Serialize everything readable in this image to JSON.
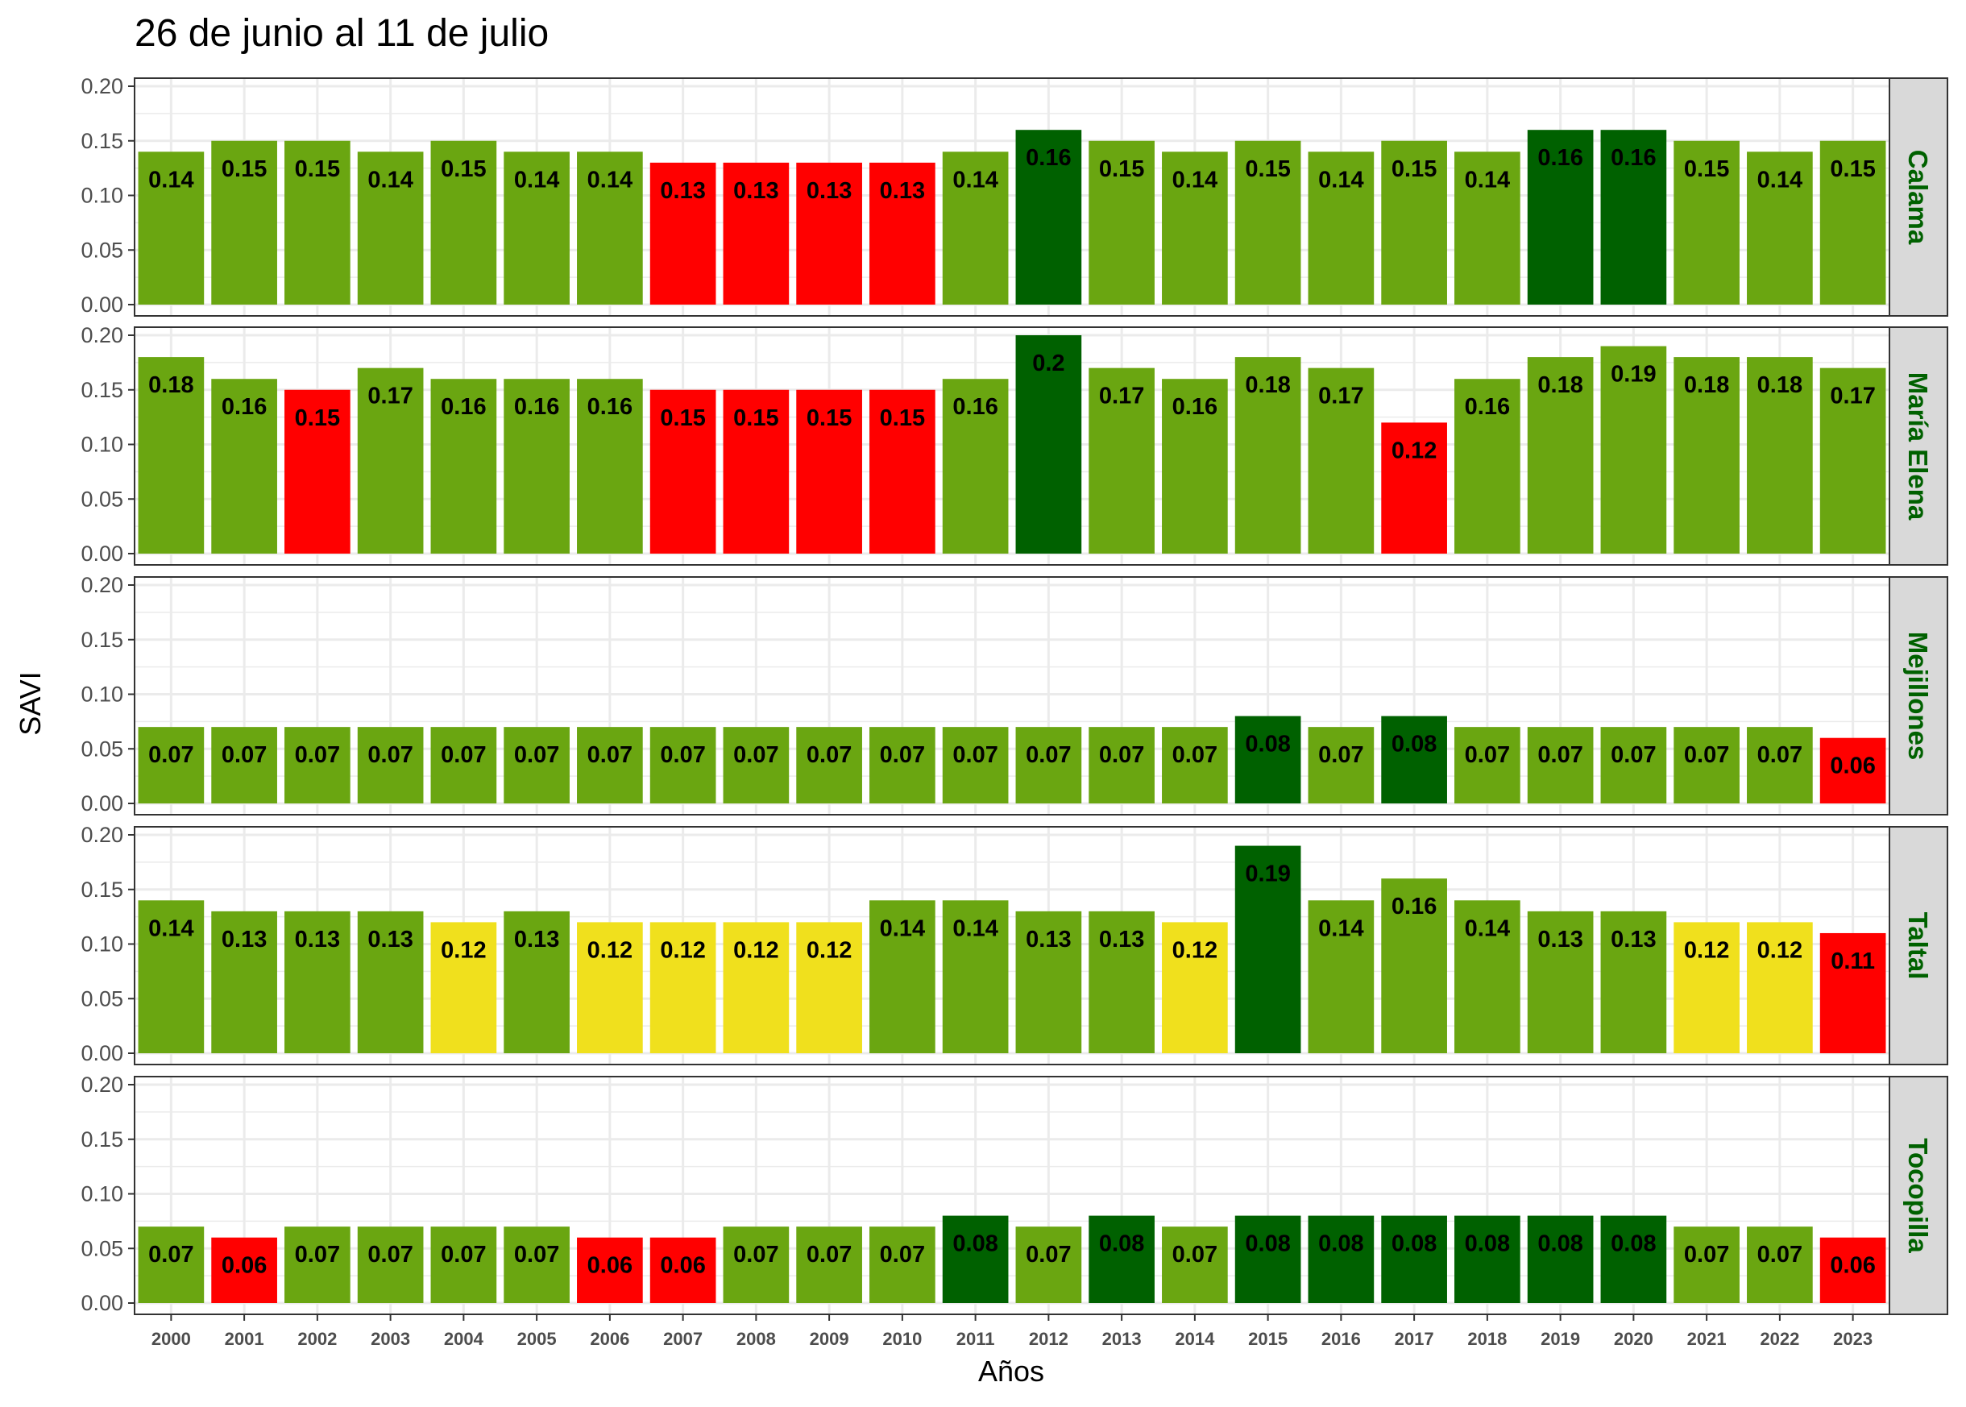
{
  "chart_data": {
    "type": "bar",
    "title": "26 de junio al 11 de julio",
    "xlabel": "Años",
    "ylabel": "SAVI",
    "ylim": [
      0,
      0.2
    ],
    "yticks": [
      "0.00",
      "0.05",
      "0.10",
      "0.15",
      "0.20"
    ],
    "grid": true,
    "facet_layout": "rows, strip labels on right",
    "colors": {
      "green": "#6aa611",
      "dark_green": "#006100",
      "red": "#ff0000",
      "yellow": "#f0e01d",
      "strip_fill": "#d9d9d9",
      "strip_text": "#006100",
      "grid": "#ebebeb"
    },
    "categories": [
      "2000",
      "2001",
      "2002",
      "2003",
      "2004",
      "2005",
      "2006",
      "2007",
      "2008",
      "2009",
      "2010",
      "2011",
      "2012",
      "2013",
      "2014",
      "2015",
      "2016",
      "2017",
      "2018",
      "2019",
      "2020",
      "2021",
      "2022",
      "2023"
    ],
    "panels": [
      {
        "name": "Calama",
        "values": [
          0.14,
          0.15,
          0.15,
          0.14,
          0.15,
          0.14,
          0.14,
          0.13,
          0.13,
          0.13,
          0.13,
          0.14,
          0.16,
          0.15,
          0.14,
          0.15,
          0.14,
          0.15,
          0.14,
          0.16,
          0.16,
          0.15,
          0.14,
          0.15
        ],
        "labels": [
          "0.14",
          "0.15",
          "0.15",
          "0.14",
          "0.15",
          "0.14",
          "0.14",
          "0.13",
          "0.13",
          "0.13",
          "0.13",
          "0.14",
          "0.16",
          "0.15",
          "0.14",
          "0.15",
          "0.14",
          "0.15",
          "0.14",
          "0.16",
          "0.16",
          "0.15",
          "0.14",
          "0.15"
        ],
        "colors": [
          "green",
          "green",
          "green",
          "green",
          "green",
          "green",
          "green",
          "red",
          "red",
          "red",
          "red",
          "green",
          "dark_green",
          "green",
          "green",
          "green",
          "green",
          "green",
          "green",
          "dark_green",
          "dark_green",
          "green",
          "green",
          "green"
        ]
      },
      {
        "name": "María Elena",
        "values": [
          0.18,
          0.16,
          0.15,
          0.17,
          0.16,
          0.16,
          0.16,
          0.15,
          0.15,
          0.15,
          0.15,
          0.16,
          0.2,
          0.17,
          0.16,
          0.18,
          0.17,
          0.12,
          0.16,
          0.18,
          0.19,
          0.18,
          0.18,
          0.17
        ],
        "labels": [
          "0.18",
          "0.16",
          "0.15",
          "0.17",
          "0.16",
          "0.16",
          "0.16",
          "0.15",
          "0.15",
          "0.15",
          "0.15",
          "0.16",
          "0.2",
          "0.17",
          "0.16",
          "0.18",
          "0.17",
          "0.12",
          "0.16",
          "0.18",
          "0.19",
          "0.18",
          "0.18",
          "0.17"
        ],
        "colors": [
          "green",
          "green",
          "red",
          "green",
          "green",
          "green",
          "green",
          "red",
          "red",
          "red",
          "red",
          "green",
          "dark_green",
          "green",
          "green",
          "green",
          "green",
          "red",
          "green",
          "green",
          "green",
          "green",
          "green",
          "green"
        ]
      },
      {
        "name": "Mejillones",
        "values": [
          0.07,
          0.07,
          0.07,
          0.07,
          0.07,
          0.07,
          0.07,
          0.07,
          0.07,
          0.07,
          0.07,
          0.07,
          0.07,
          0.07,
          0.07,
          0.08,
          0.07,
          0.08,
          0.07,
          0.07,
          0.07,
          0.07,
          0.07,
          0.06
        ],
        "labels": [
          "0.07",
          "0.07",
          "0.07",
          "0.07",
          "0.07",
          "0.07",
          "0.07",
          "0.07",
          "0.07",
          "0.07",
          "0.07",
          "0.07",
          "0.07",
          "0.07",
          "0.07",
          "0.08",
          "0.07",
          "0.08",
          "0.07",
          "0.07",
          "0.07",
          "0.07",
          "0.07",
          "0.06"
        ],
        "colors": [
          "green",
          "green",
          "green",
          "green",
          "green",
          "green",
          "green",
          "green",
          "green",
          "green",
          "green",
          "green",
          "green",
          "green",
          "green",
          "dark_green",
          "green",
          "dark_green",
          "green",
          "green",
          "green",
          "green",
          "green",
          "red"
        ]
      },
      {
        "name": "Taltal",
        "values": [
          0.14,
          0.13,
          0.13,
          0.13,
          0.12,
          0.13,
          0.12,
          0.12,
          0.12,
          0.12,
          0.14,
          0.14,
          0.13,
          0.13,
          0.12,
          0.19,
          0.14,
          0.16,
          0.14,
          0.13,
          0.13,
          0.12,
          0.12,
          0.11
        ],
        "labels": [
          "0.14",
          "0.13",
          "0.13",
          "0.13",
          "0.12",
          "0.13",
          "0.12",
          "0.12",
          "0.12",
          "0.12",
          "0.14",
          "0.14",
          "0.13",
          "0.13",
          "0.12",
          "0.19",
          "0.14",
          "0.16",
          "0.14",
          "0.13",
          "0.13",
          "0.12",
          "0.12",
          "0.11"
        ],
        "colors": [
          "green",
          "green",
          "green",
          "green",
          "yellow",
          "green",
          "yellow",
          "yellow",
          "yellow",
          "yellow",
          "green",
          "green",
          "green",
          "green",
          "yellow",
          "dark_green",
          "green",
          "green",
          "green",
          "green",
          "green",
          "yellow",
          "yellow",
          "red"
        ]
      },
      {
        "name": "Tocopilla",
        "values": [
          0.07,
          0.06,
          0.07,
          0.07,
          0.07,
          0.07,
          0.06,
          0.06,
          0.07,
          0.07,
          0.07,
          0.08,
          0.07,
          0.08,
          0.07,
          0.08,
          0.08,
          0.08,
          0.08,
          0.08,
          0.08,
          0.07,
          0.07,
          0.06
        ],
        "labels": [
          "0.07",
          "0.06",
          "0.07",
          "0.07",
          "0.07",
          "0.07",
          "0.06",
          "0.06",
          "0.07",
          "0.07",
          "0.07",
          "0.08",
          "0.07",
          "0.08",
          "0.07",
          "0.08",
          "0.08",
          "0.08",
          "0.08",
          "0.08",
          "0.08",
          "0.07",
          "0.07",
          "0.06"
        ],
        "colors": [
          "green",
          "red",
          "green",
          "green",
          "green",
          "green",
          "red",
          "red",
          "green",
          "green",
          "green",
          "dark_green",
          "green",
          "dark_green",
          "green",
          "dark_green",
          "dark_green",
          "dark_green",
          "dark_green",
          "dark_green",
          "dark_green",
          "green",
          "green",
          "red"
        ]
      }
    ]
  }
}
